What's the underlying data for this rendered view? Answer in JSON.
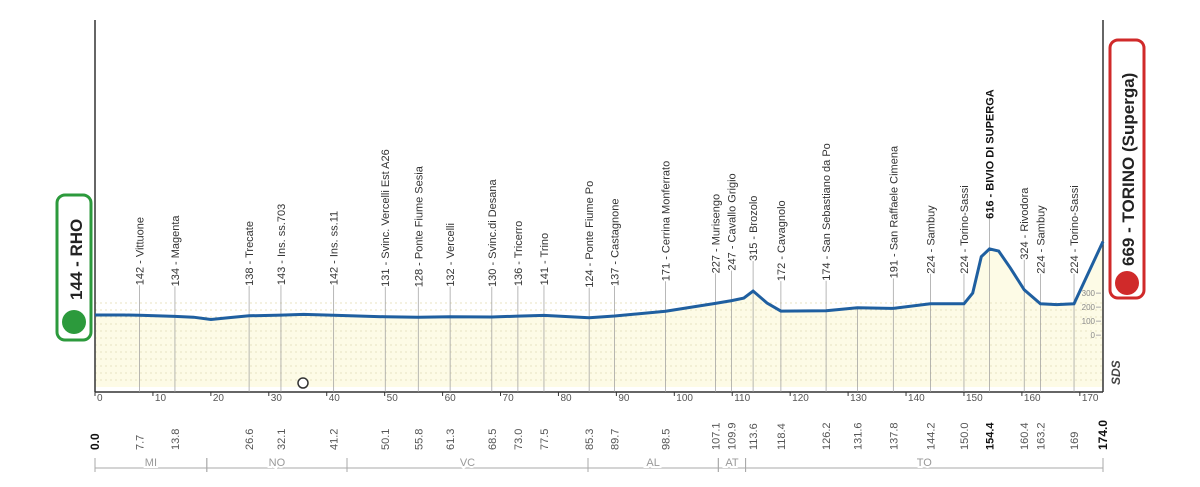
{
  "chart_data": {
    "type": "area",
    "start": "144 - RHO",
    "finish": "669 - TORINO (Superga)",
    "logo": "SDS",
    "x": [
      0,
      5,
      7.7,
      13.8,
      17,
      20,
      23,
      26.6,
      32.1,
      36,
      41.2,
      50.1,
      55.8,
      61.3,
      68.5,
      73,
      77.5,
      85.3,
      89.7,
      98.5,
      107.1,
      109.9,
      112,
      113.6,
      116,
      118.4,
      126.2,
      131.6,
      137.8,
      144.2,
      150,
      151.5,
      153,
      154.4,
      156,
      158,
      160.4,
      163.2,
      166,
      169,
      174
    ],
    "values": [
      144,
      144,
      142,
      134,
      128,
      112,
      125,
      138,
      143,
      148,
      142,
      131,
      128,
      132,
      130,
      136,
      141,
      124,
      137,
      171,
      227,
      247,
      265,
      315,
      230,
      172,
      174,
      196,
      191,
      224,
      224,
      300,
      560,
      616,
      600,
      480,
      324,
      224,
      218,
      224,
      669
    ],
    "color": "#1f5fa0",
    "fill": "#fdfbe6",
    "xlim": [
      0,
      174
    ],
    "xticks": [
      0,
      10,
      20,
      30,
      40,
      50,
      60,
      70,
      80,
      90,
      100,
      110,
      120,
      130,
      140,
      150,
      160,
      170
    ],
    "ylim": [
      -370,
      2250
    ],
    "yticks": [
      0,
      100,
      200,
      300
    ],
    "waypoints": [
      {
        "label": "142 - Vittuone",
        "km": 7.7
      },
      {
        "label": "134 - Magenta",
        "km": 13.8
      },
      {
        "label": "138 - Trecate",
        "km": 26.6
      },
      {
        "label": "143 - Ins. ss.703",
        "km": 32.1
      },
      {
        "label": "142 - Ins. ss.11",
        "km": 41.2
      },
      {
        "label": "131 - Svinc. Vercelli Est A26",
        "km": 50.1
      },
      {
        "label": "128 - Ponte Fiume Sesia",
        "km": 55.8
      },
      {
        "label": "132 - Vercelli",
        "km": 61.3
      },
      {
        "label": "130 - Svinc.di Desana",
        "km": 68.5
      },
      {
        "label": "136 - Tricerro",
        "km": {
          "value": 73,
          "label": "73.0"
        }
      },
      {
        "label": "141 - Trino",
        "km": 77.5
      },
      {
        "label": "124 - Ponte Fiume Po",
        "km": 85.3
      },
      {
        "label": "137 - Castagnone",
        "km": 89.7
      },
      {
        "label": "171 - Cerrina Monferrato",
        "km": 98.5
      },
      {
        "label": "227 - Murisengo",
        "km": 107.1
      },
      {
        "label": "247 - Cavallo Grigio",
        "km": 109.9
      },
      {
        "label": "315 - Brozolo",
        "km": 113.6
      },
      {
        "label": "172 - Cavagnolo",
        "km": 118.4
      },
      {
        "label": "174 - San Sebastiano da Po",
        "km": 126.2
      },
      {
        "label": null,
        "km": 131.6
      },
      {
        "label": "191 - San Raffaele Cimena",
        "km": 137.8
      },
      {
        "label": "224 - Sambuy",
        "km": 144.2
      },
      {
        "label": "224 - Torino-Sassi",
        "km": {
          "value": 150,
          "label": "150.0"
        }
      },
      {
        "label": "616 - BIVIO DI SUPERGA",
        "km": 154.4
      },
      {
        "label": "324 - Rivodora",
        "km": 160.4
      },
      {
        "label": "224 - Sambuy",
        "km": 163.2
      },
      {
        "label": "224 - Torino-Sassi",
        "km": 169.0
      }
    ],
    "start_km": {
      "value": 0,
      "label": "0.0"
    },
    "finish_km": {
      "value": 174,
      "label": "174.0"
    },
    "regions": [
      {
        "name": "MI",
        "from": 0,
        "to": 19.3
      },
      {
        "name": "NO",
        "from": 19.3,
        "to": 43.5
      },
      {
        "name": "VC",
        "from": 43.5,
        "to": 85.1
      },
      {
        "name": "AL",
        "from": 85.1,
        "to": 107.6
      },
      {
        "name": "AT",
        "from": 107.6,
        "to": 112.3
      },
      {
        "name": "TO",
        "from": 112.3,
        "to": 174
      }
    ]
  }
}
